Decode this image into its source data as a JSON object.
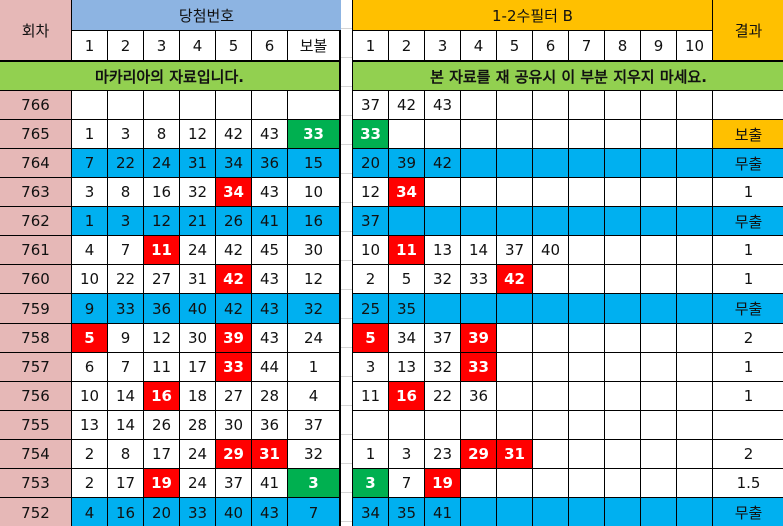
{
  "header": {
    "round_label": "회차",
    "winning_title": "당첨번호",
    "winning_cols": [
      "1",
      "2",
      "3",
      "4",
      "5",
      "6",
      "보볼"
    ],
    "filter_title": "1-2수필터 B",
    "filter_cols": [
      "1",
      "2",
      "3",
      "4",
      "5",
      "6",
      "7",
      "8",
      "9",
      "10"
    ],
    "result_label": "결과"
  },
  "banner_left": "마카리아의 자료입니다.",
  "banner_right": "본 자료를 재 공유시 이 부분 지우지 마세요.",
  "colors": {
    "pink": "#e6b8b7",
    "header_blue": "#8db4e2",
    "orange": "#ffc000",
    "banner_green": "#92d050",
    "row_blue": "#00b0f0",
    "hit_red": "#ff0000",
    "bonus_green": "#00b050"
  },
  "rows": [
    {
      "round": "766",
      "nums": [
        "",
        "",
        "",
        "",
        "",
        ""
      ],
      "bonus": "",
      "filter": [
        "37",
        "42",
        "43"
      ],
      "result": "",
      "blue": false,
      "red_nums": [],
      "bonus_green": false,
      "filter_red": [],
      "filter_green": [],
      "result_orange": false
    },
    {
      "round": "765",
      "nums": [
        "1",
        "3",
        "8",
        "12",
        "42",
        "43"
      ],
      "bonus": "33",
      "filter": [
        "33"
      ],
      "result": "보출",
      "blue": false,
      "red_nums": [],
      "bonus_green": true,
      "filter_red": [],
      "filter_green": [
        0
      ],
      "result_orange": true
    },
    {
      "round": "764",
      "nums": [
        "7",
        "22",
        "24",
        "31",
        "34",
        "36"
      ],
      "bonus": "15",
      "filter": [
        "20",
        "39",
        "42"
      ],
      "result": "무출",
      "blue": true,
      "red_nums": [],
      "bonus_green": false,
      "filter_red": [],
      "filter_green": [],
      "result_orange": false
    },
    {
      "round": "763",
      "nums": [
        "3",
        "8",
        "16",
        "32",
        "34",
        "43"
      ],
      "bonus": "10",
      "filter": [
        "12",
        "34"
      ],
      "result": "1",
      "blue": false,
      "red_nums": [
        4
      ],
      "bonus_green": false,
      "filter_red": [
        1
      ],
      "filter_green": [],
      "result_orange": false
    },
    {
      "round": "762",
      "nums": [
        "1",
        "3",
        "12",
        "21",
        "26",
        "41"
      ],
      "bonus": "16",
      "filter": [
        "37"
      ],
      "result": "무출",
      "blue": true,
      "red_nums": [],
      "bonus_green": false,
      "filter_red": [],
      "filter_green": [],
      "result_orange": false
    },
    {
      "round": "761",
      "nums": [
        "4",
        "7",
        "11",
        "24",
        "42",
        "45"
      ],
      "bonus": "30",
      "filter": [
        "10",
        "11",
        "13",
        "14",
        "37",
        "40"
      ],
      "result": "1",
      "blue": false,
      "red_nums": [
        2
      ],
      "bonus_green": false,
      "filter_red": [
        1
      ],
      "filter_green": [],
      "result_orange": false
    },
    {
      "round": "760",
      "nums": [
        "10",
        "22",
        "27",
        "31",
        "42",
        "43"
      ],
      "bonus": "12",
      "filter": [
        "2",
        "5",
        "32",
        "33",
        "42"
      ],
      "result": "1",
      "blue": false,
      "red_nums": [
        4
      ],
      "bonus_green": false,
      "filter_red": [
        4
      ],
      "filter_green": [],
      "result_orange": false
    },
    {
      "round": "759",
      "nums": [
        "9",
        "33",
        "36",
        "40",
        "42",
        "43"
      ],
      "bonus": "32",
      "filter": [
        "25",
        "35"
      ],
      "result": "무출",
      "blue": true,
      "red_nums": [],
      "bonus_green": false,
      "filter_red": [],
      "filter_green": [],
      "result_orange": false
    },
    {
      "round": "758",
      "nums": [
        "5",
        "9",
        "12",
        "30",
        "39",
        "43"
      ],
      "bonus": "24",
      "filter": [
        "5",
        "34",
        "37",
        "39"
      ],
      "result": "2",
      "blue": false,
      "red_nums": [
        0,
        4
      ],
      "bonus_green": false,
      "filter_red": [
        0,
        3
      ],
      "filter_green": [],
      "result_orange": false
    },
    {
      "round": "757",
      "nums": [
        "6",
        "7",
        "11",
        "17",
        "33",
        "44"
      ],
      "bonus": "1",
      "filter": [
        "3",
        "13",
        "32",
        "33"
      ],
      "result": "1",
      "blue": false,
      "red_nums": [
        4
      ],
      "bonus_green": false,
      "filter_red": [
        3
      ],
      "filter_green": [],
      "result_orange": false
    },
    {
      "round": "756",
      "nums": [
        "10",
        "14",
        "16",
        "18",
        "27",
        "28"
      ],
      "bonus": "4",
      "filter": [
        "11",
        "16",
        "22",
        "36"
      ],
      "result": "1",
      "blue": false,
      "red_nums": [
        2
      ],
      "bonus_green": false,
      "filter_red": [
        1
      ],
      "filter_green": [],
      "result_orange": false
    },
    {
      "round": "755",
      "nums": [
        "13",
        "14",
        "26",
        "28",
        "30",
        "36"
      ],
      "bonus": "37",
      "filter": [],
      "result": "",
      "blue": false,
      "red_nums": [],
      "bonus_green": false,
      "filter_red": [],
      "filter_green": [],
      "result_orange": false
    },
    {
      "round": "754",
      "nums": [
        "2",
        "8",
        "17",
        "24",
        "29",
        "31"
      ],
      "bonus": "32",
      "filter": [
        "1",
        "3",
        "23",
        "29",
        "31"
      ],
      "result": "2",
      "blue": false,
      "red_nums": [
        4,
        5
      ],
      "bonus_green": false,
      "filter_red": [
        3,
        4
      ],
      "filter_green": [],
      "result_orange": false
    },
    {
      "round": "753",
      "nums": [
        "2",
        "17",
        "19",
        "24",
        "37",
        "41"
      ],
      "bonus": "3",
      "filter": [
        "3",
        "7",
        "19"
      ],
      "result": "1.5",
      "blue": false,
      "red_nums": [
        2
      ],
      "bonus_green": true,
      "filter_red": [
        2
      ],
      "filter_green": [
        0
      ],
      "result_orange": false
    },
    {
      "round": "752",
      "nums": [
        "4",
        "16",
        "20",
        "33",
        "40",
        "43"
      ],
      "bonus": "7",
      "filter": [
        "34",
        "35",
        "41"
      ],
      "result": "무출",
      "blue": true,
      "red_nums": [],
      "bonus_green": false,
      "filter_red": [],
      "filter_green": [],
      "result_orange": false
    }
  ]
}
